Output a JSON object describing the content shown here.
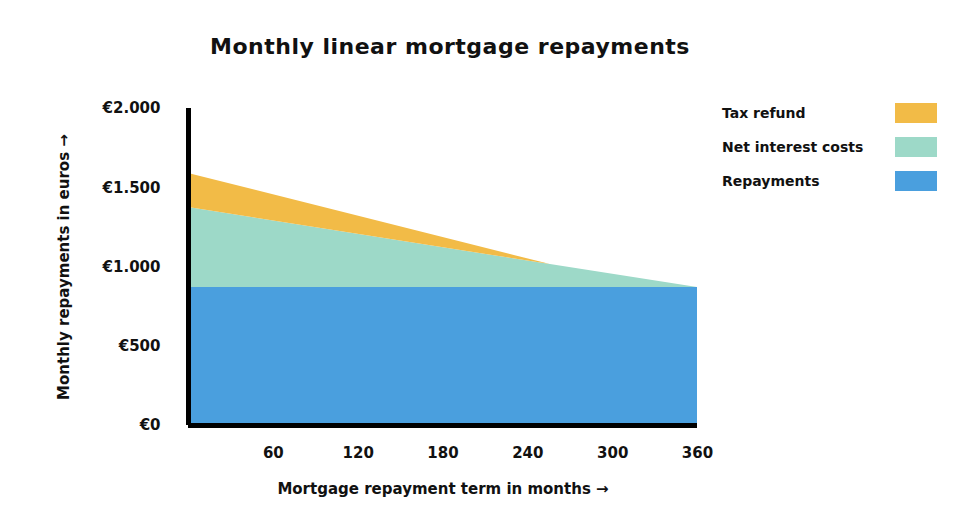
{
  "chart_data": {
    "type": "area",
    "stacked": true,
    "title": "Monthly linear mortgage repayments",
    "xlabel": "Mortgage repayment term in months",
    "ylabel": "Monthly repayments in euros",
    "x": [
      0,
      256,
      360
    ],
    "series": [
      {
        "name": "Repayments",
        "color": "#4a9fde",
        "values": [
          870,
          870,
          870
        ]
      },
      {
        "name": "Net interest costs",
        "color": "#9dd9c8",
        "values": [
          505,
          145,
          0
        ]
      },
      {
        "name": "Tax refund",
        "color": "#f2bb47",
        "values": [
          215,
          0,
          0
        ]
      }
    ],
    "xlim": [
      0,
      360
    ],
    "xticks": [
      60,
      120,
      180,
      240,
      300,
      360
    ],
    "ylim": [
      0,
      2000
    ],
    "yticks": [
      {
        "value": 0,
        "label": "€0"
      },
      {
        "value": 500,
        "label": "€500"
      },
      {
        "value": 1000,
        "label": "€1.000"
      },
      {
        "value": 1500,
        "label": "€1.500"
      },
      {
        "value": 2000,
        "label": "€2.000"
      }
    ],
    "grid": false,
    "legend": "right"
  }
}
